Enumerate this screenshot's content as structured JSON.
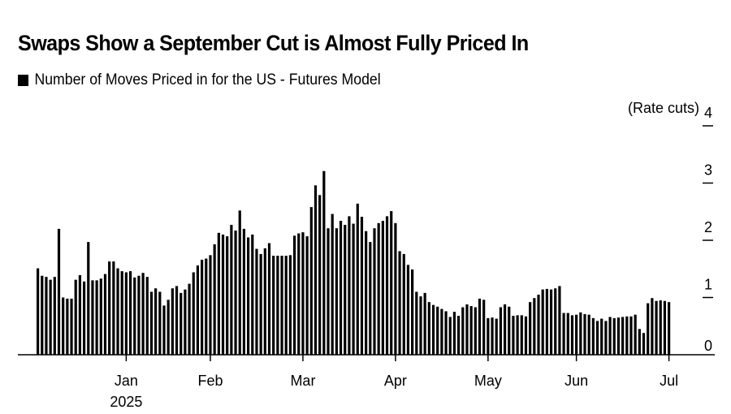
{
  "chart_data": {
    "type": "bar",
    "title": "Swaps Show a September Cut is Almost Fully Priced In",
    "legend": [
      {
        "label": "Number of Moves Priced in for the US - Futures Model",
        "color": "#000000"
      }
    ],
    "legend_placement": "top-left",
    "ylabel": "(Rate cuts)",
    "xlabel": "",
    "ylim": [
      0,
      4
    ],
    "yticks": [
      0,
      1,
      2,
      3,
      4
    ],
    "y_axis_side": "right",
    "grid": false,
    "xticks": [
      {
        "label": "Jan",
        "sublabel": "2025",
        "index": 21
      },
      {
        "label": "Feb",
        "sublabel": "",
        "index": 41
      },
      {
        "label": "Mar",
        "sublabel": "",
        "index": 63
      },
      {
        "label": "Apr",
        "sublabel": "",
        "index": 85
      },
      {
        "label": "May",
        "sublabel": "",
        "index": 107
      },
      {
        "label": "Jun",
        "sublabel": "",
        "index": 128
      },
      {
        "label": "Jul",
        "sublabel": "",
        "index": 150
      }
    ],
    "values": [
      1.51,
      1.38,
      1.36,
      1.31,
      1.36,
      2.2,
      1.0,
      0.98,
      0.98,
      1.31,
      1.39,
      1.28,
      1.97,
      1.3,
      1.3,
      1.33,
      1.41,
      1.63,
      1.63,
      1.51,
      1.46,
      1.44,
      1.46,
      1.35,
      1.38,
      1.43,
      1.36,
      1.1,
      1.16,
      1.1,
      0.86,
      0.96,
      1.16,
      1.2,
      1.08,
      1.14,
      1.24,
      1.44,
      1.56,
      1.66,
      1.68,
      1.74,
      1.93,
      2.13,
      2.1,
      2.07,
      2.27,
      2.17,
      2.52,
      2.2,
      2.05,
      2.1,
      1.85,
      1.76,
      1.86,
      1.95,
      1.73,
      1.73,
      1.73,
      1.73,
      1.74,
      2.08,
      2.12,
      2.14,
      2.07,
      2.58,
      2.96,
      2.79,
      3.21,
      2.21,
      2.46,
      2.21,
      2.34,
      2.27,
      2.42,
      2.29,
      2.64,
      2.41,
      2.16,
      1.97,
      2.21,
      2.3,
      2.34,
      2.42,
      2.51,
      2.3,
      1.81,
      1.76,
      1.57,
      1.49,
      1.1,
      1.02,
      1.08,
      0.92,
      0.87,
      0.84,
      0.8,
      0.76,
      0.66,
      0.75,
      0.68,
      0.83,
      0.88,
      0.85,
      0.83,
      0.98,
      0.96,
      0.64,
      0.65,
      0.63,
      0.83,
      0.88,
      0.84,
      0.68,
      0.69,
      0.69,
      0.67,
      0.92,
      0.99,
      1.05,
      1.14,
      1.15,
      1.14,
      1.16,
      1.2,
      0.73,
      0.73,
      0.69,
      0.7,
      0.74,
      0.71,
      0.7,
      0.64,
      0.59,
      0.63,
      0.59,
      0.66,
      0.64,
      0.65,
      0.66,
      0.67,
      0.67,
      0.7,
      0.45,
      0.38,
      0.9,
      0.99,
      0.94,
      0.95,
      0.94,
      0.92
    ]
  }
}
